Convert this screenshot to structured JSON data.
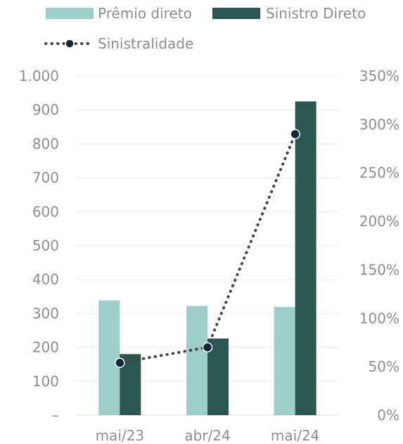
{
  "chart_data": {
    "type": "bar",
    "categories": [
      "mai/23",
      "abr/24",
      "mai/24"
    ],
    "series": [
      {
        "name": "Prêmio direto",
        "type": "bar",
        "axis": "left",
        "color": "#9ecec8",
        "values": [
          338,
          322,
          319
        ]
      },
      {
        "name": "Sinistro Direto",
        "type": "bar",
        "axis": "left",
        "color": "#2c5750",
        "values": [
          180,
          226,
          925
        ]
      },
      {
        "name": "Sinistralidade",
        "type": "line",
        "axis": "right",
        "color": "#444444",
        "marker_color": "#0f2a3a",
        "values": [
          54,
          70,
          290
        ]
      }
    ],
    "y_left": {
      "ylim": [
        0,
        1000
      ],
      "tick_values": [
        0,
        100,
        200,
        300,
        400,
        500,
        600,
        700,
        800,
        900,
        1000
      ],
      "tick_labels": [
        "–",
        "100",
        "200",
        "300",
        "400",
        "500",
        "600",
        "700",
        "800",
        "900",
        "1.000"
      ]
    },
    "y_right": {
      "ylim": [
        0,
        350
      ],
      "tick_values": [
        0,
        50,
        100,
        150,
        200,
        250,
        300,
        350
      ],
      "tick_labels": [
        "0%",
        "50%",
        "100%",
        "150%",
        "200%",
        "250%",
        "300%",
        "350%"
      ]
    },
    "grid": true,
    "legend_position": "top"
  }
}
